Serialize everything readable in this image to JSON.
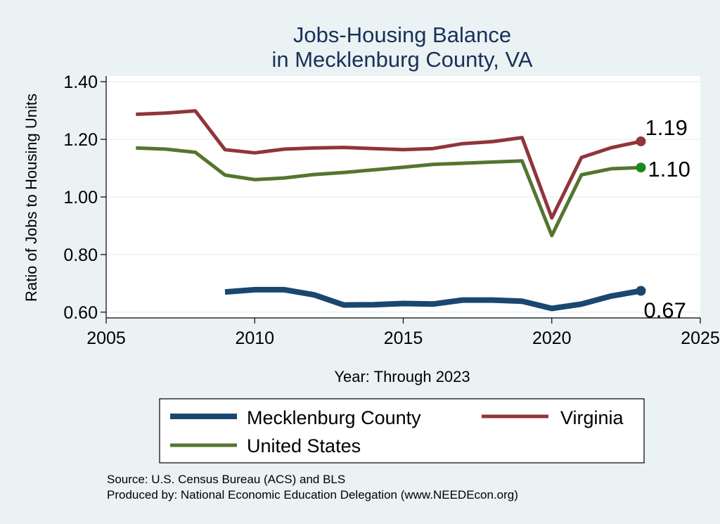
{
  "chart_data": {
    "type": "line",
    "title": [
      "Jobs-Housing Balance",
      "in Mecklenburg County, VA"
    ],
    "xlabel": "Year: Through 2023",
    "ylabel": "Ratio of Jobs to Housing Units",
    "xlim": [
      2005,
      2025
    ],
    "ylim": [
      0.58,
      1.42
    ],
    "x_ticks": [
      2005,
      2010,
      2015,
      2020,
      2025
    ],
    "y_ticks": [
      0.6,
      0.8,
      1.0,
      1.2,
      1.4
    ],
    "y_tick_labels": [
      "0.60",
      "0.80",
      "1.00",
      "1.20",
      "1.40"
    ],
    "grid": true,
    "legend_position": "bottom",
    "series": [
      {
        "name": "Mecklenburg County",
        "color": "#1a476f",
        "x": [
          2009,
          2010,
          2011,
          2012,
          2013,
          2014,
          2015,
          2016,
          2017,
          2018,
          2019,
          2020,
          2021,
          2022,
          2023
        ],
        "values": [
          0.67,
          0.678,
          0.678,
          0.66,
          0.625,
          0.626,
          0.63,
          0.628,
          0.642,
          0.642,
          0.638,
          0.613,
          0.628,
          0.656,
          0.674
        ],
        "end_label": "0.67",
        "end_marker_color": "#1a476f"
      },
      {
        "name": "Virginia",
        "color": "#90353b",
        "x": [
          2006,
          2007,
          2008,
          2009,
          2010,
          2011,
          2012,
          2013,
          2014,
          2015,
          2016,
          2017,
          2018,
          2019,
          2020,
          2021,
          2022,
          2023
        ],
        "values": [
          1.287,
          1.291,
          1.299,
          1.164,
          1.153,
          1.166,
          1.17,
          1.172,
          1.168,
          1.164,
          1.168,
          1.185,
          1.192,
          1.206,
          0.927,
          1.137,
          1.171,
          1.193
        ],
        "end_label": "1.19",
        "end_marker_color": "#90353b"
      },
      {
        "name": "United States",
        "color": "#55752f",
        "x": [
          2006,
          2007,
          2008,
          2009,
          2010,
          2011,
          2012,
          2013,
          2014,
          2015,
          2016,
          2017,
          2018,
          2019,
          2020,
          2021,
          2022,
          2023
        ],
        "values": [
          1.17,
          1.166,
          1.155,
          1.076,
          1.06,
          1.066,
          1.078,
          1.085,
          1.094,
          1.103,
          1.113,
          1.117,
          1.121,
          1.125,
          0.866,
          1.077,
          1.098,
          1.102
        ],
        "end_label": "1.10",
        "end_marker_color": "#1a8a1a"
      }
    ]
  },
  "legend": {
    "items": [
      "Mecklenburg County",
      "Virginia",
      "United States"
    ]
  },
  "source": {
    "line1": "Source: U.S. Census Bureau (ACS) and BLS",
    "line2": "Produced by: National Economic Education Delegation (www.NEEDEcon.org)"
  }
}
